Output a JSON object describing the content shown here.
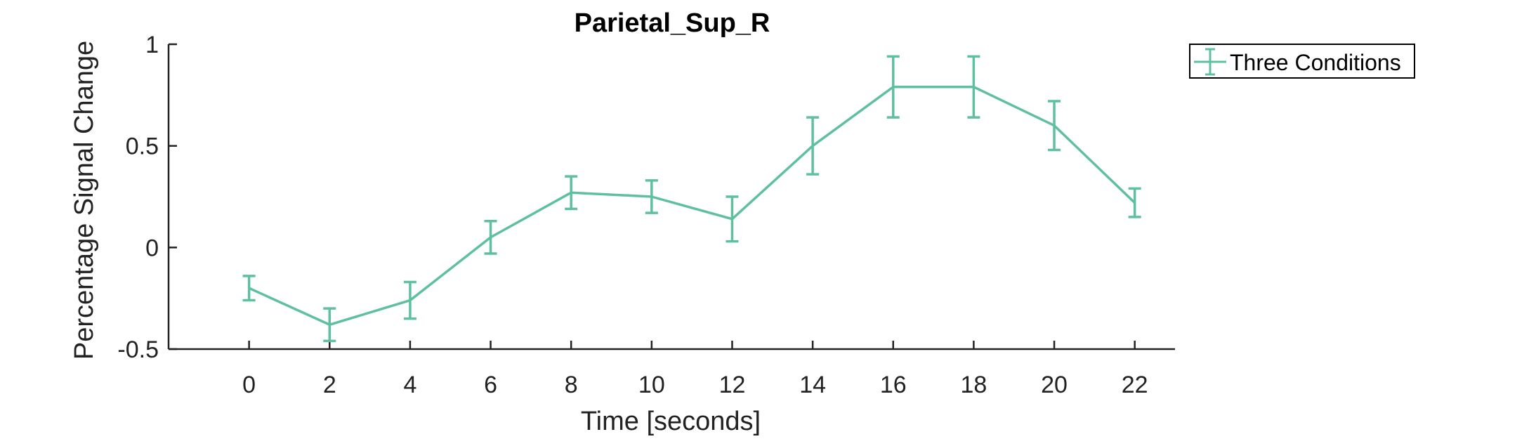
{
  "chart_data": {
    "type": "line",
    "title": "Parietal_Sup_R",
    "xlabel": "Time [seconds]",
    "ylabel": "Percentage Signal Change",
    "x": [
      0,
      2,
      4,
      6,
      8,
      10,
      12,
      14,
      16,
      18,
      20,
      22
    ],
    "xticks": [
      "0",
      "2",
      "4",
      "6",
      "8",
      "10",
      "12",
      "14",
      "16",
      "18",
      "20",
      "22"
    ],
    "yticks": [
      "-0.5",
      "0",
      "0.5",
      "1"
    ],
    "xlim": [
      -2,
      23
    ],
    "ylim": [
      -0.5,
      1
    ],
    "grid": false,
    "legend_position": "top-right outside",
    "series": [
      {
        "name": "Three Conditions",
        "color": "#5fc0a0",
        "values": [
          -0.2,
          -0.38,
          -0.26,
          0.05,
          0.27,
          0.25,
          0.14,
          0.5,
          0.79,
          0.79,
          0.6,
          0.22
        ],
        "error": [
          0.06,
          0.08,
          0.09,
          0.08,
          0.08,
          0.08,
          0.11,
          0.14,
          0.15,
          0.15,
          0.12,
          0.07
        ]
      }
    ]
  }
}
